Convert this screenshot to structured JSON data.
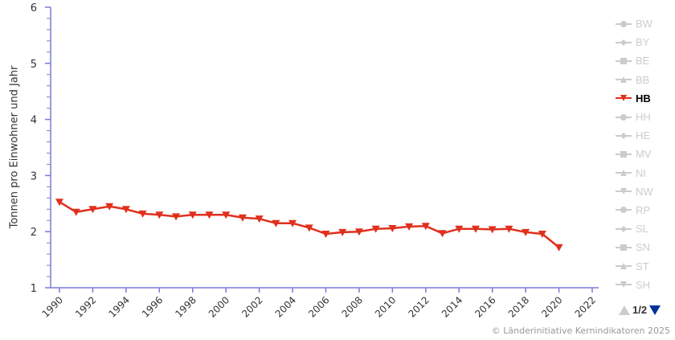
{
  "chart_data": {
    "type": "line",
    "title": "",
    "xlabel": "",
    "ylabel": "Tonnen pro Einwohner und Jahr",
    "ylim": [
      1,
      6
    ],
    "xlim": [
      1990,
      2022
    ],
    "yticks": [
      1,
      2,
      3,
      4,
      5,
      6
    ],
    "xticks": [
      1990,
      1992,
      1994,
      1996,
      1998,
      2000,
      2002,
      2004,
      2006,
      2008,
      2010,
      2012,
      2014,
      2016,
      2018,
      2020,
      2022
    ],
    "grid": false,
    "legend_position": "right",
    "x": [
      1990,
      1991,
      1992,
      1993,
      1994,
      1995,
      1996,
      1997,
      1998,
      1999,
      2000,
      2001,
      2002,
      2003,
      2004,
      2005,
      2006,
      2007,
      2008,
      2009,
      2010,
      2011,
      2012,
      2013,
      2014,
      2015,
      2016,
      2017,
      2018,
      2019,
      2020
    ],
    "series": [
      {
        "name": "HB",
        "color": "#e0301e",
        "marker": "triangle-down",
        "values": [
          2.53,
          2.35,
          2.4,
          2.45,
          2.4,
          2.32,
          2.3,
          2.27,
          2.3,
          2.3,
          2.3,
          2.25,
          2.23,
          2.15,
          2.15,
          2.07,
          1.96,
          1.99,
          2.0,
          2.05,
          2.06,
          2.09,
          2.1,
          1.97,
          2.05,
          2.05,
          2.04,
          2.05,
          1.99,
          1.96,
          1.72
        ]
      }
    ]
  },
  "axis": {
    "ylabel": "Tonnen pro Einwohner und Jahr",
    "color": "#7b7bd8"
  },
  "legend": {
    "items": [
      {
        "label": "BW",
        "marker": "circle",
        "active": false
      },
      {
        "label": "BY",
        "marker": "diamond",
        "active": false
      },
      {
        "label": "BE",
        "marker": "square",
        "active": false
      },
      {
        "label": "BB",
        "marker": "triangle",
        "active": false
      },
      {
        "label": "HB",
        "marker": "triangle-down",
        "active": true
      },
      {
        "label": "HH",
        "marker": "circle",
        "active": false
      },
      {
        "label": "HE",
        "marker": "diamond",
        "active": false
      },
      {
        "label": "MV",
        "marker": "square",
        "active": false
      },
      {
        "label": "NI",
        "marker": "triangle",
        "active": false
      },
      {
        "label": "NW",
        "marker": "triangle-down",
        "active": false
      },
      {
        "label": "RP",
        "marker": "circle",
        "active": false
      },
      {
        "label": "SL",
        "marker": "diamond",
        "active": false
      },
      {
        "label": "SN",
        "marker": "square",
        "active": false
      },
      {
        "label": "ST",
        "marker": "triangle",
        "active": false
      },
      {
        "label": "SH",
        "marker": "triangle-down",
        "active": false
      }
    ],
    "active_color": "#e0301e",
    "inactive_color": "#cccccc",
    "pager": {
      "text": "1/2",
      "up_color": "#cccccc",
      "down_color": "#003399"
    }
  },
  "credits": "© Länderinitiative Kernindikatoren 2025"
}
